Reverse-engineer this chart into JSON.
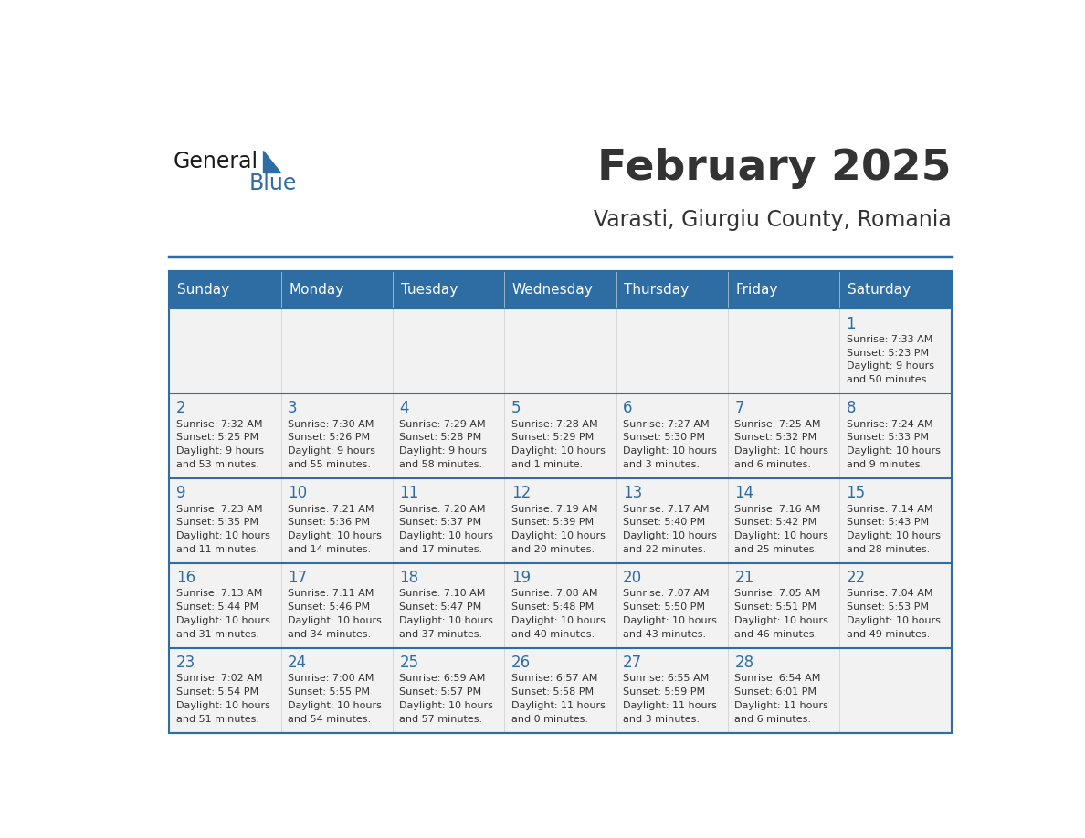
{
  "title": "February 2025",
  "subtitle": "Varasti, Giurgiu County, Romania",
  "days_of_week": [
    "Sunday",
    "Monday",
    "Tuesday",
    "Wednesday",
    "Thursday",
    "Friday",
    "Saturday"
  ],
  "header_bg": "#2E6DA4",
  "header_text": "#FFFFFF",
  "cell_bg_light": "#F2F2F2",
  "divider_color": "#2E6DA4",
  "text_color": "#333333",
  "day_num_color": "#2E6DA4",
  "logo_general_color": "#1a1a1a",
  "logo_blue_color": "#2E6DA4",
  "calendar_data": [
    [
      {
        "day": "",
        "info": ""
      },
      {
        "day": "",
        "info": ""
      },
      {
        "day": "",
        "info": ""
      },
      {
        "day": "",
        "info": ""
      },
      {
        "day": "",
        "info": ""
      },
      {
        "day": "",
        "info": ""
      },
      {
        "day": "1",
        "info": "Sunrise: 7:33 AM\nSunset: 5:23 PM\nDaylight: 9 hours\nand 50 minutes."
      }
    ],
    [
      {
        "day": "2",
        "info": "Sunrise: 7:32 AM\nSunset: 5:25 PM\nDaylight: 9 hours\nand 53 minutes."
      },
      {
        "day": "3",
        "info": "Sunrise: 7:30 AM\nSunset: 5:26 PM\nDaylight: 9 hours\nand 55 minutes."
      },
      {
        "day": "4",
        "info": "Sunrise: 7:29 AM\nSunset: 5:28 PM\nDaylight: 9 hours\nand 58 minutes."
      },
      {
        "day": "5",
        "info": "Sunrise: 7:28 AM\nSunset: 5:29 PM\nDaylight: 10 hours\nand 1 minute."
      },
      {
        "day": "6",
        "info": "Sunrise: 7:27 AM\nSunset: 5:30 PM\nDaylight: 10 hours\nand 3 minutes."
      },
      {
        "day": "7",
        "info": "Sunrise: 7:25 AM\nSunset: 5:32 PM\nDaylight: 10 hours\nand 6 minutes."
      },
      {
        "day": "8",
        "info": "Sunrise: 7:24 AM\nSunset: 5:33 PM\nDaylight: 10 hours\nand 9 minutes."
      }
    ],
    [
      {
        "day": "9",
        "info": "Sunrise: 7:23 AM\nSunset: 5:35 PM\nDaylight: 10 hours\nand 11 minutes."
      },
      {
        "day": "10",
        "info": "Sunrise: 7:21 AM\nSunset: 5:36 PM\nDaylight: 10 hours\nand 14 minutes."
      },
      {
        "day": "11",
        "info": "Sunrise: 7:20 AM\nSunset: 5:37 PM\nDaylight: 10 hours\nand 17 minutes."
      },
      {
        "day": "12",
        "info": "Sunrise: 7:19 AM\nSunset: 5:39 PM\nDaylight: 10 hours\nand 20 minutes."
      },
      {
        "day": "13",
        "info": "Sunrise: 7:17 AM\nSunset: 5:40 PM\nDaylight: 10 hours\nand 22 minutes."
      },
      {
        "day": "14",
        "info": "Sunrise: 7:16 AM\nSunset: 5:42 PM\nDaylight: 10 hours\nand 25 minutes."
      },
      {
        "day": "15",
        "info": "Sunrise: 7:14 AM\nSunset: 5:43 PM\nDaylight: 10 hours\nand 28 minutes."
      }
    ],
    [
      {
        "day": "16",
        "info": "Sunrise: 7:13 AM\nSunset: 5:44 PM\nDaylight: 10 hours\nand 31 minutes."
      },
      {
        "day": "17",
        "info": "Sunrise: 7:11 AM\nSunset: 5:46 PM\nDaylight: 10 hours\nand 34 minutes."
      },
      {
        "day": "18",
        "info": "Sunrise: 7:10 AM\nSunset: 5:47 PM\nDaylight: 10 hours\nand 37 minutes."
      },
      {
        "day": "19",
        "info": "Sunrise: 7:08 AM\nSunset: 5:48 PM\nDaylight: 10 hours\nand 40 minutes."
      },
      {
        "day": "20",
        "info": "Sunrise: 7:07 AM\nSunset: 5:50 PM\nDaylight: 10 hours\nand 43 minutes."
      },
      {
        "day": "21",
        "info": "Sunrise: 7:05 AM\nSunset: 5:51 PM\nDaylight: 10 hours\nand 46 minutes."
      },
      {
        "day": "22",
        "info": "Sunrise: 7:04 AM\nSunset: 5:53 PM\nDaylight: 10 hours\nand 49 minutes."
      }
    ],
    [
      {
        "day": "23",
        "info": "Sunrise: 7:02 AM\nSunset: 5:54 PM\nDaylight: 10 hours\nand 51 minutes."
      },
      {
        "day": "24",
        "info": "Sunrise: 7:00 AM\nSunset: 5:55 PM\nDaylight: 10 hours\nand 54 minutes."
      },
      {
        "day": "25",
        "info": "Sunrise: 6:59 AM\nSunset: 5:57 PM\nDaylight: 10 hours\nand 57 minutes."
      },
      {
        "day": "26",
        "info": "Sunrise: 6:57 AM\nSunset: 5:58 PM\nDaylight: 11 hours\nand 0 minutes."
      },
      {
        "day": "27",
        "info": "Sunrise: 6:55 AM\nSunset: 5:59 PM\nDaylight: 11 hours\nand 3 minutes."
      },
      {
        "day": "28",
        "info": "Sunrise: 6:54 AM\nSunset: 6:01 PM\nDaylight: 11 hours\nand 6 minutes."
      },
      {
        "day": "",
        "info": ""
      }
    ]
  ]
}
